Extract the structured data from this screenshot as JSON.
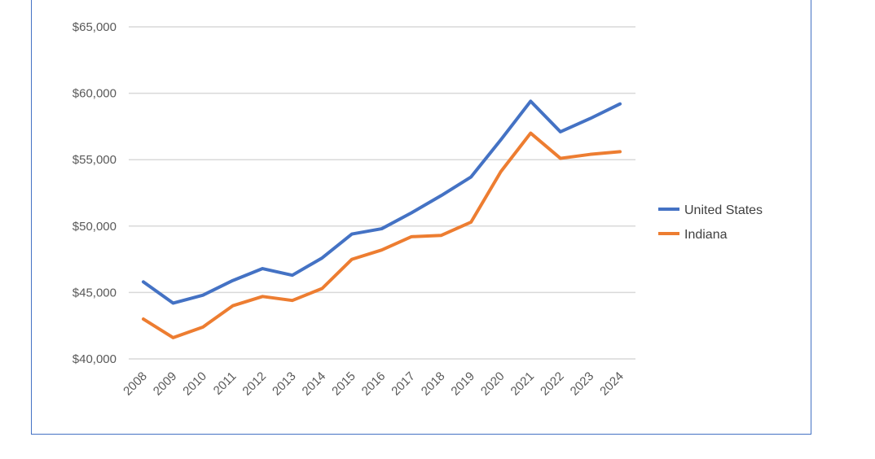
{
  "chart_data": {
    "type": "line",
    "title": "",
    "xlabel": "",
    "ylabel": "",
    "categories": [
      "2008",
      "2009",
      "2010",
      "2011",
      "2012",
      "2013",
      "2014",
      "2015",
      "2016",
      "2017",
      "2018",
      "2019",
      "2020",
      "2021",
      "2022",
      "2023",
      "2024"
    ],
    "series": [
      {
        "name": "United States",
        "color": "#4472c4",
        "values": [
          45800,
          44200,
          44800,
          45900,
          46800,
          46300,
          47600,
          49400,
          49800,
          51000,
          52300,
          53700,
          56500,
          59400,
          57100,
          58100,
          59200
        ]
      },
      {
        "name": "Indiana",
        "color": "#ed7d31",
        "values": [
          43000,
          41600,
          42400,
          44000,
          44700,
          44400,
          45300,
          47500,
          48200,
          49200,
          49300,
          50300,
          54100,
          57000,
          55100,
          55400,
          55600
        ]
      }
    ],
    "ylim": [
      40000,
      65000
    ],
    "yticks": [
      40000,
      45000,
      50000,
      55000,
      60000,
      65000
    ],
    "ytick_labels": [
      "$40,000",
      "$45,000",
      "$50,000",
      "$55,000",
      "$60,000",
      "$65,000"
    ],
    "grid": true,
    "legend": "right"
  }
}
